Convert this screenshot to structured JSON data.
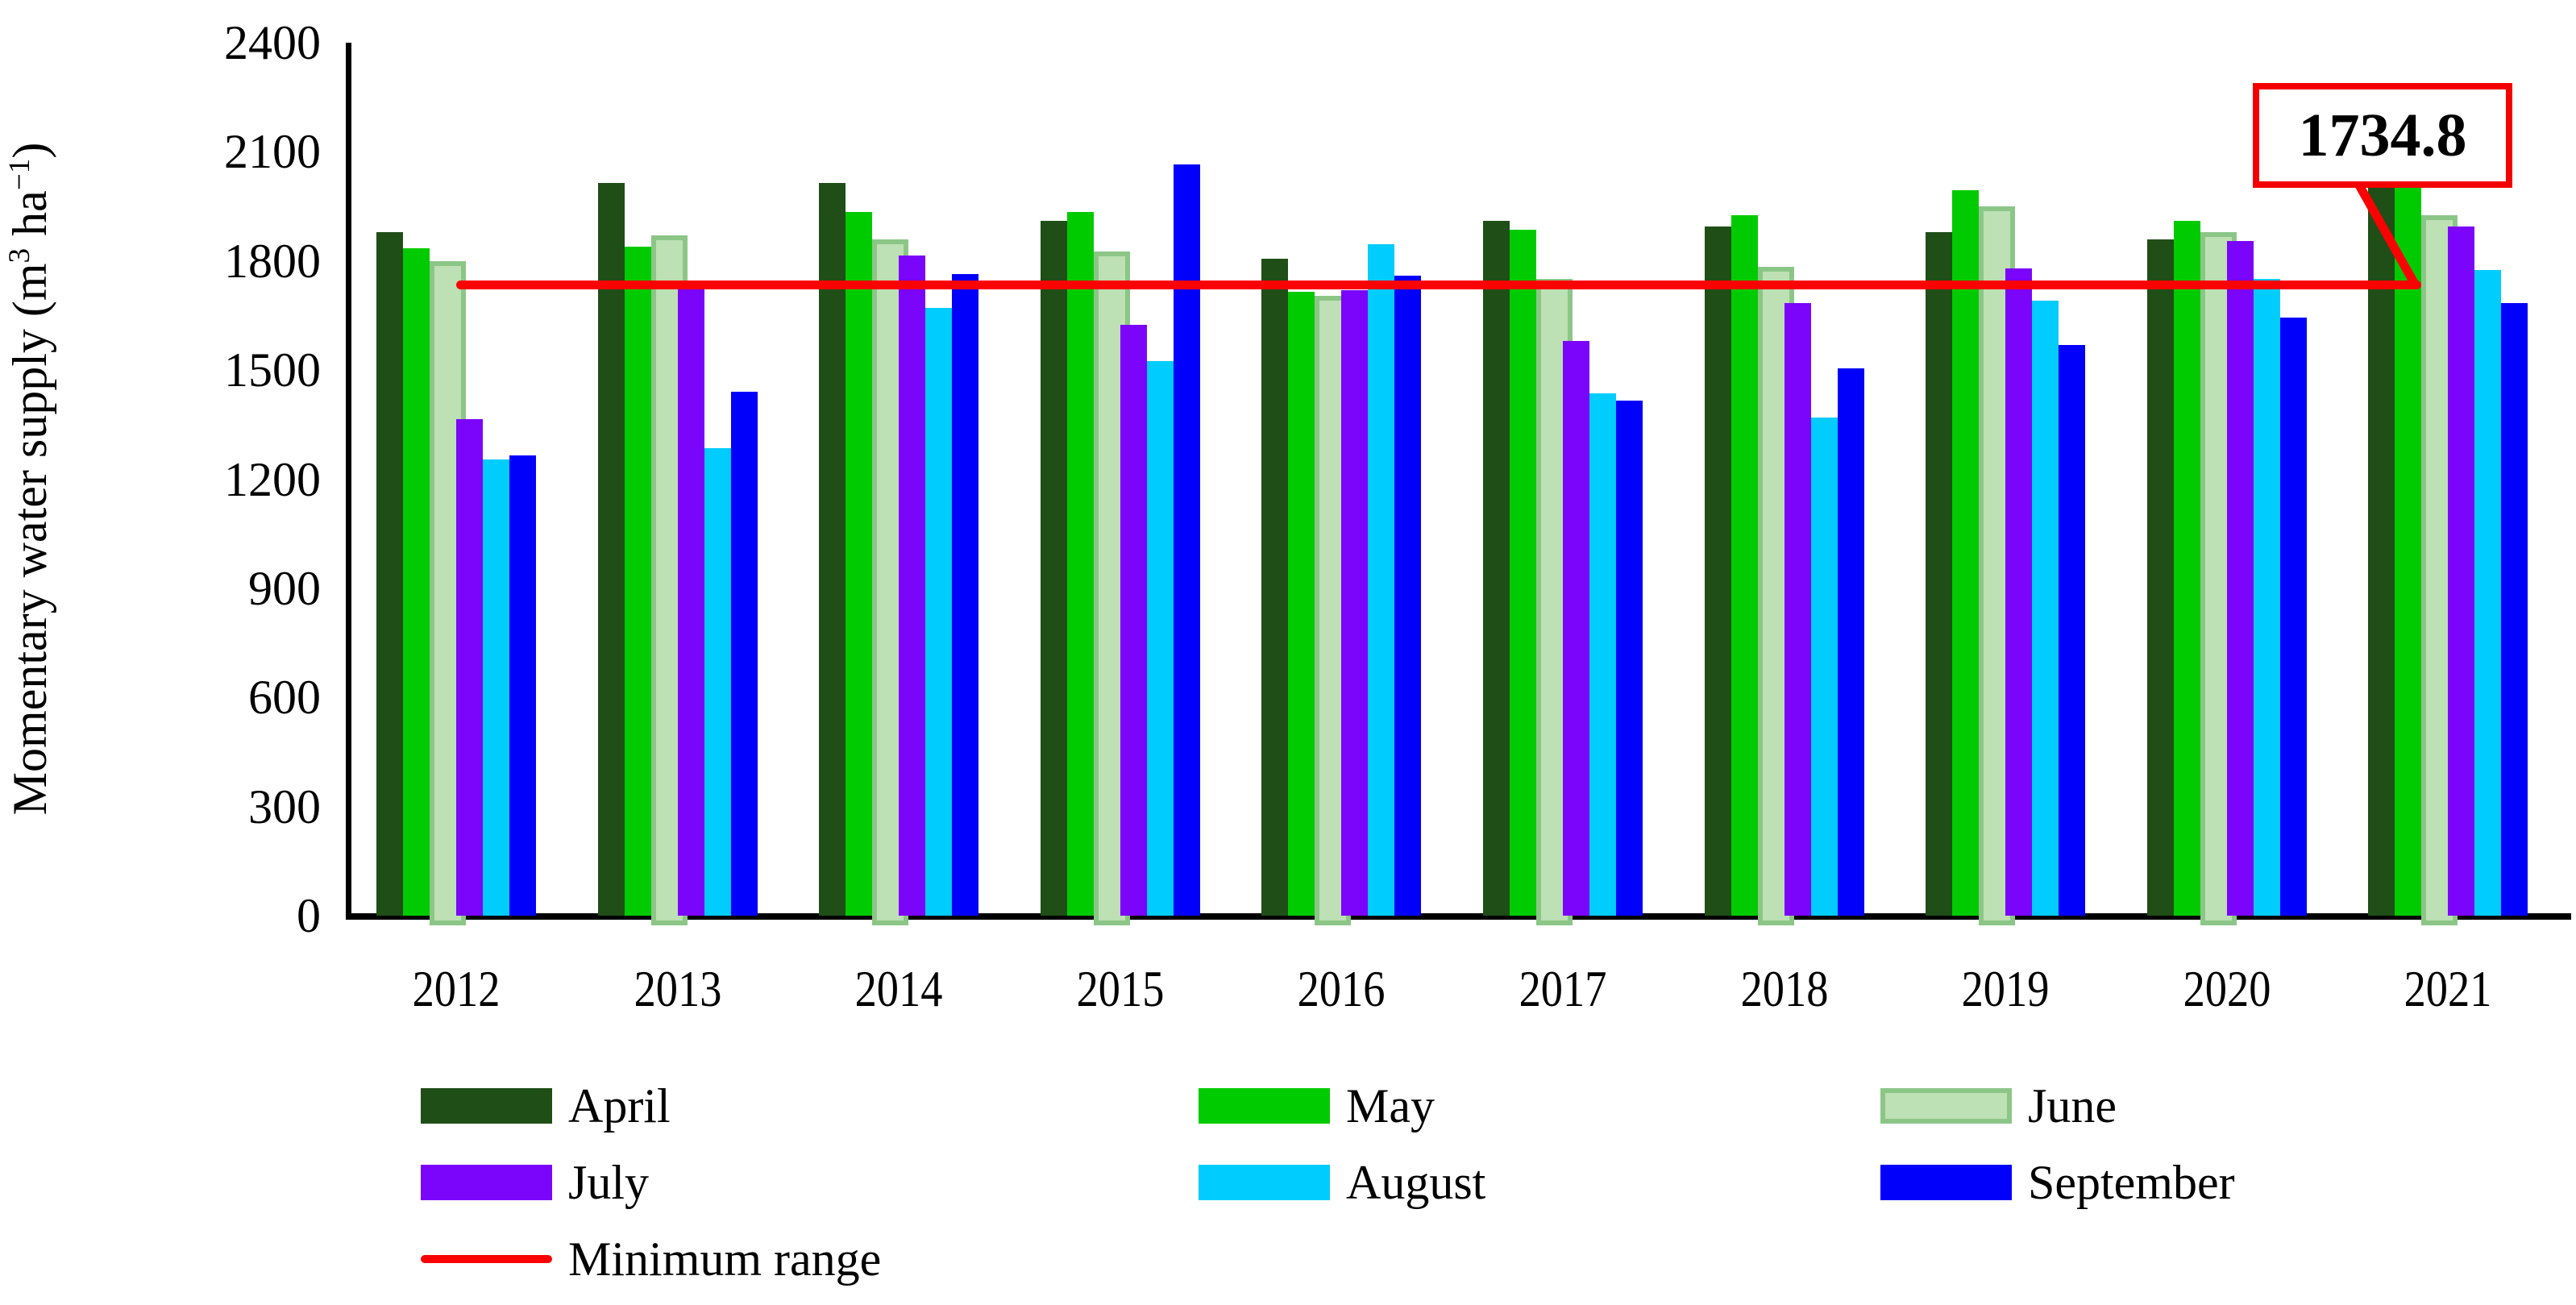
{
  "chart_data": {
    "type": "bar",
    "title": "",
    "ylabel": "Momentary water supply (m3 ha-1)",
    "ylabel_parts": {
      "pre": "Momentary water supply (m",
      "sup1": "3",
      "mid": " ha",
      "sup2": "−1",
      "post": ")"
    },
    "xlabel": "",
    "ylim": [
      0,
      2400
    ],
    "ytick_step": 300,
    "y_ticks": [
      "0",
      "300",
      "600",
      "900",
      "1200",
      "1500",
      "1800",
      "2100",
      "2400"
    ],
    "grid": false,
    "legend_position": "bottom",
    "categories": [
      "2012",
      "2013",
      "2014",
      "2015",
      "2016",
      "2017",
      "2018",
      "2019",
      "2020",
      "2021"
    ],
    "series": [
      {
        "name": "April",
        "color": "#1f4e17",
        "values": [
          1880,
          2015,
          2015,
          1910,
          1805,
          1910,
          1895,
          1880,
          1860,
          2025
        ]
      },
      {
        "name": "May",
        "color": "#00cb00",
        "values": [
          1835,
          1840,
          1935,
          1935,
          1715,
          1885,
          1925,
          1995,
          1910,
          2060
        ]
      },
      {
        "name": "June",
        "color": "#bde0b4",
        "border": "#8cc687",
        "values": [
          1800,
          1870,
          1860,
          1825,
          1705,
          1750,
          1785,
          1950,
          1880,
          1925
        ]
      },
      {
        "name": "July",
        "color": "#7b04fb",
        "values": [
          1365,
          1745,
          1815,
          1625,
          1720,
          1580,
          1685,
          1780,
          1855,
          1895
        ]
      },
      {
        "name": "August",
        "color": "#00ccfe",
        "values": [
          1255,
          1285,
          1670,
          1525,
          1845,
          1435,
          1370,
          1690,
          1750,
          1775
        ]
      },
      {
        "name": "September",
        "color": "#0100fa",
        "values": [
          1265,
          1440,
          1765,
          2065,
          1760,
          1415,
          1505,
          1570,
          1645,
          1685
        ]
      }
    ],
    "min_range_line": {
      "label": "Minimum range",
      "value": 1734.8,
      "color": "#fb0202"
    },
    "annotation": {
      "label": "1734.8",
      "value": 1734.8,
      "attached_to": "min_range_line",
      "border_color": "#f40000"
    },
    "legend": {
      "items": [
        {
          "label": "April",
          "type": "rect",
          "color": "#1f4e17",
          "col": 0,
          "row": 0
        },
        {
          "label": "May",
          "type": "rect",
          "color": "#00cb00",
          "col": 1,
          "row": 0
        },
        {
          "label": "June",
          "type": "rect",
          "color": "#bde0b4",
          "border": "#8cc687",
          "col": 2,
          "row": 0
        },
        {
          "label": "July",
          "type": "rect",
          "color": "#7b04fb",
          "col": 0,
          "row": 1
        },
        {
          "label": "August",
          "type": "rect",
          "color": "#00ccfe",
          "col": 1,
          "row": 1
        },
        {
          "label": "September",
          "type": "rect",
          "color": "#0100fa",
          "col": 2,
          "row": 1
        },
        {
          "label": "Minimum range",
          "type": "line",
          "color": "#fb0202",
          "col": 0,
          "row": 2
        }
      ]
    }
  }
}
